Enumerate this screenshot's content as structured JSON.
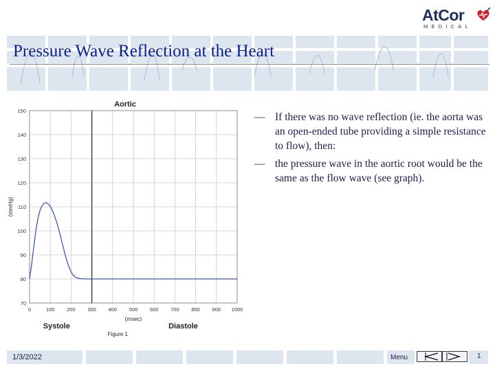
{
  "logo": {
    "main": "AtCor",
    "sub": "MEDICAL"
  },
  "title": "Pressure Wave Reflection at the Heart",
  "chart_data": {
    "type": "line",
    "title": "Aortic",
    "xlabel": "(msec)",
    "ylabel": "(mmHg)",
    "xlim": [
      0,
      1000
    ],
    "ylim": [
      70,
      150
    ],
    "x_ticks": [
      0,
      100,
      200,
      300,
      400,
      500,
      600,
      700,
      800,
      900,
      1000
    ],
    "y_ticks": [
      70,
      80,
      90,
      100,
      110,
      120,
      130,
      140,
      150
    ],
    "grid": true,
    "phase_labels": [
      "Systole",
      "Diastole"
    ],
    "phase_boundary_x": 300,
    "caption": "Figure 1",
    "series": [
      {
        "x": [
          0,
          10,
          20,
          30,
          40,
          50,
          60,
          70,
          80,
          90,
          100,
          110,
          120,
          130,
          140,
          150,
          160,
          170,
          180,
          190,
          200,
          210,
          220,
          230,
          240,
          250,
          260,
          270,
          280,
          290,
          300,
          400,
          500,
          600,
          700,
          800,
          900,
          1000
        ],
        "y": [
          80,
          86,
          93,
          100,
          105,
          108.5,
          110.5,
          111.5,
          111.7,
          111.2,
          110.2,
          108.5,
          106.3,
          103.7,
          100.7,
          97.4,
          94.0,
          90.6,
          87.5,
          84.9,
          82.9,
          81.6,
          80.8,
          80.4,
          80.2,
          80.1,
          80,
          80,
          80,
          80,
          80,
          80,
          80,
          80,
          80,
          80,
          80,
          80
        ],
        "color": "#3b5bab"
      }
    ]
  },
  "bullets": [
    {
      "dash": "—",
      "text": "If there was no wave reflection (ie. the aorta was an open-ended tube providing a simple resistance to flow), then:"
    },
    {
      "dash": "—",
      "text": "the pressure wave in the aortic root would be the same as the flow wave (see graph)."
    }
  ],
  "footer": {
    "date": "1/3/2022",
    "menu": "Menu",
    "page": "1"
  },
  "colors": {
    "title": "#0a1f8f",
    "banner": "#dde6ef",
    "logo": "#1f2d5a",
    "heart": "#d01f2a"
  },
  "icons": {
    "prev": "prev-slide-icon",
    "next": "next-slide-icon",
    "heart": "heart-logo-icon"
  }
}
